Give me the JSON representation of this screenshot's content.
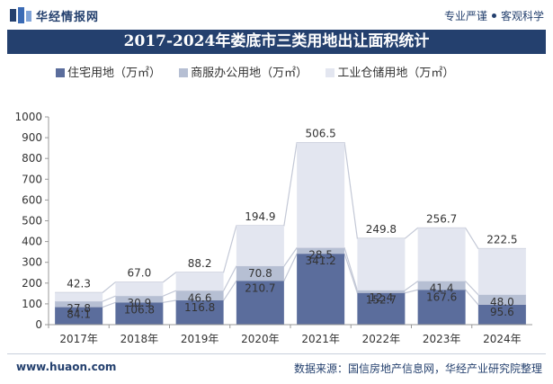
{
  "header": {
    "site_name": "华经情报网",
    "tagline_left": "专业严谨",
    "tagline_right": "客观科学",
    "logo_icon": "huajing-logo-icon"
  },
  "title": "2017-2024年娄底市三类用地出让面积统计",
  "footer": {
    "url": "www.huaon.com",
    "source": "数据来源：国信房地产信息网，华经产业研究院整理"
  },
  "colors": {
    "brand": "#24406e",
    "residential": "#5b6d9c",
    "commercial": "#b6bfd3",
    "industrial": "#e3e6f0"
  },
  "chart_data": {
    "type": "bar",
    "stacked": true,
    "categories": [
      "2017年",
      "2018年",
      "2019年",
      "2020年",
      "2021年",
      "2022年",
      "2023年",
      "2024年"
    ],
    "series": [
      {
        "name": "住宅用地（万㎡）",
        "values": [
          84.1,
          106.8,
          116.8,
          210.7,
          341.2,
          152.7,
          167.6,
          95.6
        ]
      },
      {
        "name": "商服办公用地（万㎡）",
        "values": [
          27.8,
          30.9,
          46.6,
          70.8,
          28.5,
          12.4,
          41.4,
          48.0
        ]
      },
      {
        "name": "工业仓储用地（万㎡）",
        "values": [
          42.3,
          67.0,
          88.2,
          194.9,
          506.5,
          249.8,
          256.7,
          222.5
        ]
      }
    ],
    "ylim": [
      0,
      1000
    ],
    "yticks": [
      0,
      100,
      200,
      300,
      400,
      500,
      600,
      700,
      800,
      900,
      1000
    ],
    "legend_position": "top-left",
    "grid": false,
    "connector_lines": true
  }
}
